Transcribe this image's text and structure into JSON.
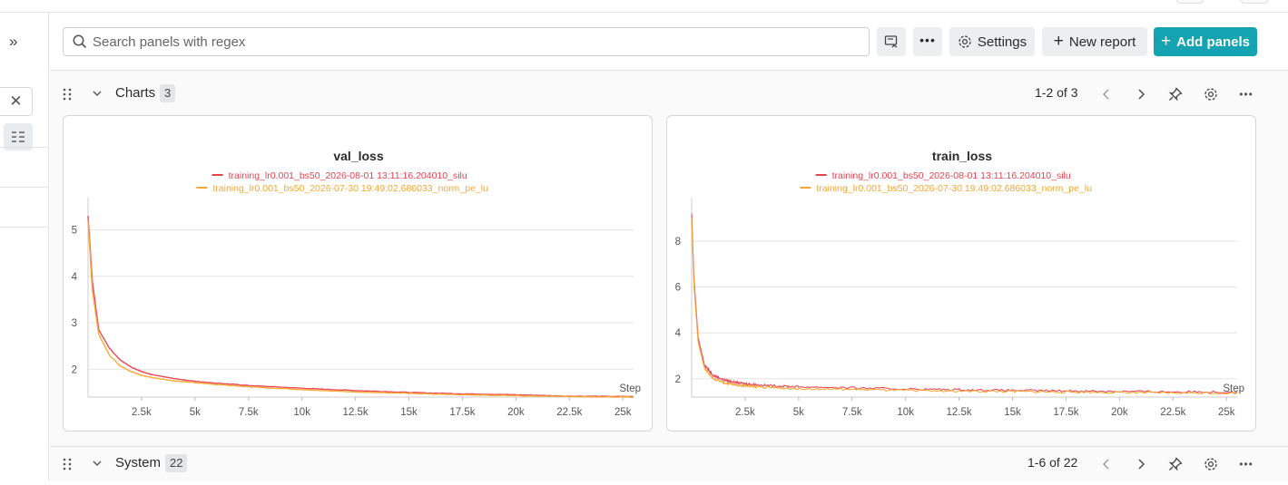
{
  "left": {
    "expand_icon": "double-chevron-right-icon",
    "close_icon": "close-icon",
    "view_icon": "grid-list-icon"
  },
  "search": {
    "placeholder": "Search panels with regex",
    "icon": "search-icon"
  },
  "toolbar": {
    "settings_label": "Settings",
    "new_report_label": "New report",
    "add_panels_label": "Add panels"
  },
  "colors": {
    "accent": "#13a3b1",
    "series_red": "#e8424f",
    "series_orange": "#f5a733"
  },
  "charts_section": {
    "title": "Charts",
    "count": "3",
    "pager": "1-2 of 3"
  },
  "system_section": {
    "title": "System",
    "count": "22",
    "pager": "1-6 of 22"
  },
  "panels": [
    {
      "title": "val_loss",
      "legend": [
        "training_lr0.001_bs50_2026-08-01 13:11:16.204010_silu",
        "training_lr0.001_bs50_2026-07-30 19:49:02.686033_norm_pe_lu"
      ],
      "yticks": [
        "5",
        "4",
        "3",
        "2"
      ],
      "xticks": [
        "2.5k",
        "5k",
        "7.5k",
        "10k",
        "12.5k",
        "15k",
        "17.5k",
        "20k",
        "22.5k",
        "25k"
      ],
      "xlabel": "Step"
    },
    {
      "title": "train_loss",
      "legend": [
        "training_lr0.001_bs50_2026-08-01 13:11:16.204010_silu",
        "training_lr0.001_bs50_2026-07-30 19:49:02.686033_norm_pe_lu"
      ],
      "yticks": [
        "8",
        "6",
        "4",
        "2"
      ],
      "xticks": [
        "2.5k",
        "5k",
        "7.5k",
        "10k",
        "12.5k",
        "15k",
        "17.5k",
        "20k",
        "22.5k",
        "25k"
      ],
      "xlabel": "Step"
    }
  ],
  "chart_data": [
    {
      "type": "line",
      "title": "val_loss",
      "xlabel": "Step",
      "ylabel": "",
      "xlim": [
        0,
        25500
      ],
      "ylim": [
        1.4,
        5.5
      ],
      "series": [
        {
          "name": "training_lr0.001_bs50_2026-08-01 13:11:16.204010_silu",
          "color": "#e8424f",
          "x": [
            0,
            200,
            500,
            1000,
            1500,
            2000,
            2500,
            3000,
            4000,
            5000,
            6000,
            7500,
            10000,
            12500,
            15000,
            17500,
            20000,
            22500,
            25500
          ],
          "y": [
            5.3,
            3.9,
            2.85,
            2.45,
            2.2,
            2.05,
            1.95,
            1.88,
            1.8,
            1.74,
            1.7,
            1.65,
            1.59,
            1.54,
            1.5,
            1.47,
            1.45,
            1.42,
            1.41
          ]
        },
        {
          "name": "training_lr0.001_bs50_2026-07-30 19:49:02.686033_norm_pe_lu",
          "color": "#f5a733",
          "x": [
            0,
            200,
            500,
            1000,
            1500,
            2000,
            2500,
            3000,
            4000,
            5000,
            6000,
            7500,
            10000,
            12500,
            15000,
            17500,
            20000,
            22500,
            25500
          ],
          "y": [
            5.2,
            3.7,
            2.75,
            2.3,
            2.07,
            1.95,
            1.87,
            1.82,
            1.75,
            1.71,
            1.67,
            1.62,
            1.56,
            1.51,
            1.48,
            1.45,
            1.43,
            1.41,
            1.4
          ]
        }
      ]
    },
    {
      "type": "line",
      "title": "train_loss",
      "xlabel": "Step",
      "ylabel": "",
      "xlim": [
        0,
        25500
      ],
      "ylim": [
        1.2,
        9.5
      ],
      "series": [
        {
          "name": "training_lr0.001_bs50_2026-08-01 13:11:16.204010_silu",
          "color": "#e8424f",
          "x": [
            0,
            100,
            300,
            600,
            1000,
            1500,
            2000,
            2500,
            3000,
            4000,
            5000,
            7500,
            10000,
            12500,
            15000,
            17500,
            20000,
            22500,
            25500
          ],
          "y": [
            9.2,
            6.5,
            3.8,
            2.6,
            2.15,
            1.95,
            1.85,
            1.78,
            1.74,
            1.68,
            1.65,
            1.6,
            1.55,
            1.52,
            1.49,
            1.47,
            1.45,
            1.43,
            1.42
          ]
        },
        {
          "name": "training_lr0.001_bs50_2026-07-30 19:49:02.686033_norm_pe_lu",
          "color": "#f5a733",
          "x": [
            0,
            100,
            300,
            600,
            1000,
            1500,
            2000,
            2500,
            3000,
            4000,
            5000,
            7500,
            10000,
            12500,
            15000,
            17500,
            20000,
            22500,
            25500
          ],
          "y": [
            9.0,
            6.2,
            3.6,
            2.45,
            2.0,
            1.82,
            1.74,
            1.69,
            1.65,
            1.6,
            1.57,
            1.53,
            1.49,
            1.46,
            1.44,
            1.42,
            1.4,
            1.38,
            1.37
          ]
        }
      ]
    }
  ]
}
